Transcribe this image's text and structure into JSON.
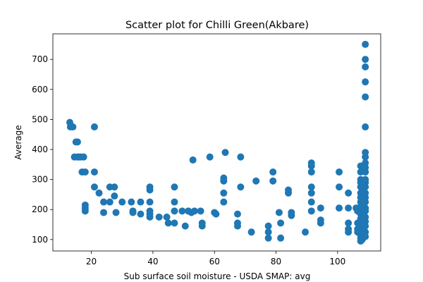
{
  "chart_data": {
    "type": "scatter",
    "title": "Scatter plot for Chilli Green(Akbare)",
    "xlabel": "Sub surface soil moisture - USDA SMAP: avg",
    "ylabel": "Average",
    "xlim": [
      7.5,
      114
    ],
    "ylim": [
      62,
      785
    ],
    "xticks": [
      20,
      40,
      60,
      80,
      100
    ],
    "yticks": [
      100,
      200,
      300,
      400,
      500,
      600,
      700
    ],
    "grid": false,
    "marker_color": "#1f77b4",
    "points": [
      [
        13,
        490
      ],
      [
        13.2,
        475
      ],
      [
        14,
        475
      ],
      [
        14.5,
        375
      ],
      [
        15,
        425
      ],
      [
        15.5,
        425
      ],
      [
        15.5,
        375
      ],
      [
        16,
        375
      ],
      [
        16.5,
        375
      ],
      [
        17,
        325
      ],
      [
        17.5,
        375
      ],
      [
        18,
        325
      ],
      [
        18,
        215
      ],
      [
        18,
        205
      ],
      [
        18,
        195
      ],
      [
        21,
        475
      ],
      [
        21,
        325
      ],
      [
        21,
        275
      ],
      [
        22.5,
        255
      ],
      [
        24,
        225
      ],
      [
        24,
        190
      ],
      [
        26,
        275
      ],
      [
        26,
        225
      ],
      [
        27.5,
        275
      ],
      [
        27.5,
        245
      ],
      [
        28,
        190
      ],
      [
        30,
        225
      ],
      [
        33,
        225
      ],
      [
        33.5,
        195
      ],
      [
        33.5,
        190
      ],
      [
        36,
        225
      ],
      [
        36,
        185
      ],
      [
        39,
        275
      ],
      [
        39,
        265
      ],
      [
        39,
        225
      ],
      [
        39,
        195
      ],
      [
        39,
        185
      ],
      [
        39,
        175
      ],
      [
        42,
        175
      ],
      [
        44.5,
        175
      ],
      [
        45,
        155
      ],
      [
        47,
        275
      ],
      [
        47,
        225
      ],
      [
        47,
        195
      ],
      [
        47,
        155
      ],
      [
        49.5,
        195
      ],
      [
        50.5,
        145
      ],
      [
        51.5,
        195
      ],
      [
        52.5,
        190
      ],
      [
        53,
        365
      ],
      [
        53.5,
        195
      ],
      [
        55.5,
        195
      ],
      [
        56,
        155
      ],
      [
        56,
        145
      ],
      [
        58.5,
        375
      ],
      [
        60,
        190
      ],
      [
        60.5,
        185
      ],
      [
        63,
        305
      ],
      [
        63,
        295
      ],
      [
        63,
        255
      ],
      [
        63.5,
        390
      ],
      [
        63,
        225
      ],
      [
        67.5,
        185
      ],
      [
        67.5,
        155
      ],
      [
        67.5,
        145
      ],
      [
        68.5,
        375
      ],
      [
        68.5,
        275
      ],
      [
        72,
        125
      ],
      [
        73.5,
        295
      ],
      [
        77.5,
        145
      ],
      [
        77.5,
        125
      ],
      [
        77.5,
        105
      ],
      [
        79,
        325
      ],
      [
        79,
        295
      ],
      [
        81,
        190
      ],
      [
        81.5,
        155
      ],
      [
        81.5,
        105
      ],
      [
        84,
        265
      ],
      [
        84,
        255
      ],
      [
        85,
        190
      ],
      [
        85,
        180
      ],
      [
        89.5,
        125
      ],
      [
        91.5,
        355
      ],
      [
        91.5,
        345
      ],
      [
        91.5,
        325
      ],
      [
        91.5,
        275
      ],
      [
        91.5,
        255
      ],
      [
        91.5,
        225
      ],
      [
        91.5,
        195
      ],
      [
        94.5,
        205
      ],
      [
        94.5,
        165
      ],
      [
        94.5,
        155
      ],
      [
        100.5,
        325
      ],
      [
        100.5,
        275
      ],
      [
        100.5,
        205
      ],
      [
        103.5,
        255
      ],
      [
        103.5,
        205
      ],
      [
        103.5,
        155
      ],
      [
        103.5,
        135
      ],
      [
        103.5,
        125
      ],
      [
        106,
        205
      ],
      [
        106.5,
        195
      ],
      [
        106.5,
        155
      ],
      [
        106.5,
        135
      ],
      [
        106.5,
        125
      ],
      [
        107.5,
        345
      ],
      [
        107.5,
        325
      ],
      [
        107.5,
        300
      ],
      [
        107.5,
        290
      ],
      [
        107.5,
        275
      ],
      [
        107.5,
        255
      ],
      [
        107.5,
        240
      ],
      [
        107.5,
        225
      ],
      [
        107.5,
        210
      ],
      [
        107.5,
        195
      ],
      [
        107.5,
        185
      ],
      [
        107.5,
        170
      ],
      [
        107.5,
        155
      ],
      [
        107.5,
        145
      ],
      [
        107.5,
        135
      ],
      [
        107.5,
        125
      ],
      [
        107.5,
        115
      ],
      [
        107.5,
        105
      ],
      [
        107.5,
        95
      ],
      [
        108,
        330
      ],
      [
        108,
        290
      ],
      [
        108,
        260
      ],
      [
        108,
        230
      ],
      [
        108,
        200
      ],
      [
        108,
        175
      ],
      [
        108,
        150
      ],
      [
        108,
        120
      ],
      [
        108,
        100
      ],
      [
        109,
        750
      ],
      [
        109,
        700
      ],
      [
        109,
        675
      ],
      [
        109,
        625
      ],
      [
        109,
        575
      ],
      [
        109,
        475
      ],
      [
        109,
        390
      ],
      [
        109,
        375
      ],
      [
        109,
        355
      ],
      [
        109,
        340
      ],
      [
        109,
        325
      ],
      [
        109,
        300
      ],
      [
        109,
        290
      ],
      [
        109,
        275
      ],
      [
        109,
        255
      ],
      [
        109,
        240
      ],
      [
        109,
        225
      ],
      [
        109,
        205
      ],
      [
        109,
        195
      ],
      [
        109,
        175
      ],
      [
        109,
        160
      ],
      [
        109,
        145
      ],
      [
        109,
        125
      ],
      [
        109,
        110
      ]
    ]
  }
}
